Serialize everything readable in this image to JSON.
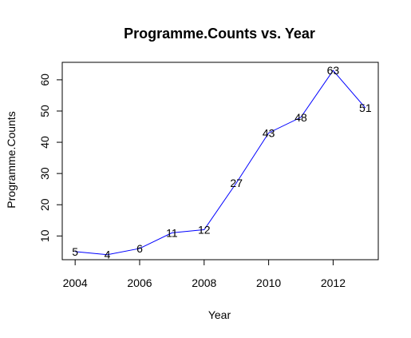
{
  "chart_data": {
    "type": "line",
    "title": "Programme.Counts vs. Year",
    "xlabel": "Year",
    "ylabel": "Programme.Counts",
    "x": [
      2004,
      2005,
      2006,
      2007,
      2008,
      2009,
      2010,
      2011,
      2012,
      2013
    ],
    "series": [
      {
        "values": [
          5,
          4,
          6,
          11,
          12,
          27,
          43,
          48,
          63,
          51
        ],
        "labels": [
          "5",
          "4",
          "6",
          "11",
          "12",
          "27",
          "43",
          "48",
          "63",
          "51"
        ],
        "color": "#0000ff"
      }
    ],
    "x_ticks": [
      2004,
      2006,
      2008,
      2010,
      2012
    ],
    "y_ticks": [
      10,
      20,
      30,
      40,
      50,
      60
    ],
    "xlim": [
      2003.6,
      2013.4
    ],
    "ylim": [
      2.4,
      65.6
    ],
    "grid": false,
    "legend": "none"
  }
}
